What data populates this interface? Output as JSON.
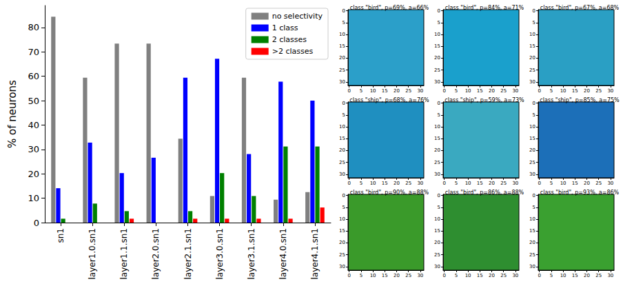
{
  "chart_data": [
    {
      "type": "bar",
      "ylabel": "% of neurons",
      "categories": [
        "sn1",
        "layer1.0.sn1",
        "layer1.1.sn1",
        "layer2.0.sn1",
        "layer2.1.sn1",
        "layer3.0.sn1",
        "layer3.1.sn1",
        "layer4.0.sn1",
        "layer4.1.sn1"
      ],
      "series": [
        {
          "name": "no selectivity",
          "color": "#808080",
          "values": [
            84.4,
            59.4,
            73.4,
            73.4,
            34.4,
            10.9,
            59.4,
            9.4,
            12.5
          ]
        },
        {
          "name": "1 class",
          "color": "#0000ff",
          "values": [
            14.1,
            32.8,
            20.3,
            26.6,
            59.4,
            67.2,
            28.1,
            57.8,
            50.0
          ]
        },
        {
          "name": "2 classes",
          "color": "#008000",
          "values": [
            1.6,
            7.8,
            4.7,
            0,
            4.7,
            20.3,
            10.9,
            31.2,
            31.2
          ]
        },
        {
          "name": ">2 classes",
          "color": "#ff0000",
          "values": [
            0,
            0,
            1.6,
            0,
            1.6,
            1.6,
            1.6,
            1.6,
            6.2
          ]
        }
      ],
      "ylim": [
        0,
        89
      ],
      "yticks": [
        0,
        10,
        20,
        30,
        40,
        50,
        60,
        70,
        80
      ],
      "grid": false,
      "legend": "upper right"
    },
    {
      "type": "image",
      "title": "class \"bird\", p=69%, a=66%",
      "color": "#2b9fc9",
      "xlim": [
        -0.5,
        31.5
      ],
      "xticks": [
        0,
        5,
        10,
        15,
        20,
        25,
        30
      ],
      "ylim": [
        31.5,
        -0.5
      ],
      "yticks": [
        0,
        5,
        10,
        15,
        20,
        25,
        30
      ]
    },
    {
      "type": "image",
      "title": "class \"bird\", p=84%, a=71%",
      "color": "#1aa0cc",
      "xlim": [
        -0.5,
        31.5
      ],
      "xticks": [
        0,
        5,
        10,
        15,
        20,
        25,
        30
      ],
      "ylim": [
        31.5,
        -0.5
      ],
      "yticks": [
        0,
        5,
        10,
        15,
        20,
        25,
        30
      ]
    },
    {
      "type": "image",
      "title": "class \"bird\", p=67%, a=68%",
      "color": "#2a9fc4",
      "xlim": [
        -0.5,
        31.5
      ],
      "xticks": [
        0,
        5,
        10,
        15,
        20,
        25,
        30
      ],
      "ylim": [
        31.5,
        -0.5
      ],
      "yticks": [
        0,
        5,
        10,
        15,
        20,
        25,
        30
      ]
    },
    {
      "type": "image",
      "title": "class \"ship\", p=68%, a=76%",
      "color": "#1f8fc0",
      "xlim": [
        -0.5,
        31.5
      ],
      "xticks": [
        0,
        5,
        10,
        15,
        20,
        25,
        30
      ],
      "ylim": [
        31.5,
        -0.5
      ],
      "yticks": [
        0,
        5,
        10,
        15,
        20,
        25,
        30
      ]
    },
    {
      "type": "image",
      "title": "class \"ship\", p=59%, a=73%",
      "color": "#3aa9c0",
      "xlim": [
        -0.5,
        31.5
      ],
      "xticks": [
        0,
        5,
        10,
        15,
        20,
        25,
        30
      ],
      "ylim": [
        31.5,
        -0.5
      ],
      "yticks": [
        0,
        5,
        10,
        15,
        20,
        25,
        30
      ]
    },
    {
      "type": "image",
      "title": "class \"ship\", p=85%, a=75%",
      "color": "#1c6fb8",
      "xlim": [
        -0.5,
        31.5
      ],
      "xticks": [
        0,
        5,
        10,
        15,
        20,
        25,
        30
      ],
      "ylim": [
        31.5,
        -0.5
      ],
      "yticks": [
        0,
        5,
        10,
        15,
        20,
        25,
        30
      ]
    },
    {
      "type": "image",
      "title": "class \"bird\", p=90%, a=88%",
      "color": "#3a9a2a",
      "xlim": [
        -0.5,
        31.5
      ],
      "xticks": [
        0,
        5,
        10,
        15,
        20,
        25,
        30
      ],
      "ylim": [
        31.5,
        -0.5
      ],
      "yticks": [
        0,
        5,
        10,
        15,
        20,
        25,
        30
      ]
    },
    {
      "type": "image",
      "title": "class \"bird\", p=86%, a=88%",
      "color": "#2e8e30",
      "xlim": [
        -0.5,
        31.5
      ],
      "xticks": [
        0,
        5,
        10,
        15,
        20,
        25,
        30
      ],
      "ylim": [
        31.5,
        -0.5
      ],
      "yticks": [
        0,
        5,
        10,
        15,
        20,
        25,
        30
      ]
    },
    {
      "type": "image",
      "title": "class \"bird\", p=93%, a=86%",
      "color": "#3aa030",
      "xlim": [
        -0.5,
        31.5
      ],
      "xticks": [
        0,
        5,
        10,
        15,
        20,
        25,
        30
      ],
      "ylim": [
        31.5,
        -0.5
      ],
      "yticks": [
        0,
        5,
        10,
        15,
        20,
        25,
        30
      ]
    }
  ]
}
